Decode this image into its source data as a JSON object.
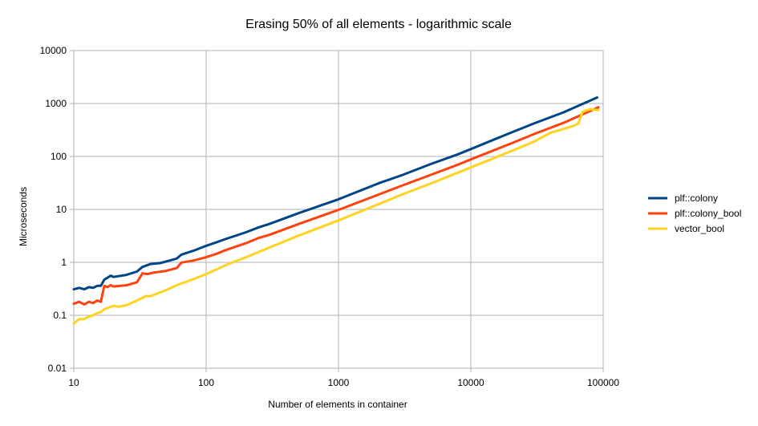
{
  "chart_data": {
    "type": "line",
    "title": "Erasing 50% of all elements - logarithmic scale",
    "xlabel": "Number of elements in container",
    "ylabel": "Microseconds",
    "x_scale": "log",
    "y_scale": "log",
    "xlim": [
      10,
      100000
    ],
    "ylim": [
      0.01,
      10000
    ],
    "x_ticks": [
      "10",
      "100",
      "1000",
      "10000",
      "100000"
    ],
    "y_ticks": [
      "0.01",
      "0.1",
      "1",
      "10",
      "100",
      "1000",
      "10000"
    ],
    "grid": true,
    "legend_position": "right",
    "series": [
      {
        "name": "plf::colony",
        "color": "#004586",
        "points": [
          [
            10,
            0.31
          ],
          [
            11,
            0.33
          ],
          [
            12,
            0.31
          ],
          [
            13,
            0.34
          ],
          [
            14,
            0.33
          ],
          [
            15,
            0.36
          ],
          [
            16,
            0.36
          ],
          [
            17,
            0.47
          ],
          [
            19,
            0.56
          ],
          [
            20,
            0.53
          ],
          [
            25,
            0.58
          ],
          [
            30,
            0.67
          ],
          [
            33,
            0.82
          ],
          [
            38,
            0.93
          ],
          [
            45,
            0.97
          ],
          [
            60,
            1.18
          ],
          [
            65,
            1.4
          ],
          [
            80,
            1.65
          ],
          [
            100,
            2.05
          ],
          [
            120,
            2.4
          ],
          [
            140,
            2.75
          ],
          [
            200,
            3.7
          ],
          [
            250,
            4.6
          ],
          [
            300,
            5.3
          ],
          [
            500,
            8.5
          ],
          [
            1000,
            15.5
          ],
          [
            2000,
            31
          ],
          [
            3000,
            44
          ],
          [
            5000,
            72
          ],
          [
            8000,
            110
          ],
          [
            10000,
            138
          ],
          [
            20000,
            280
          ],
          [
            30000,
            420
          ],
          [
            50000,
            680
          ],
          [
            90000,
            1300
          ]
        ]
      },
      {
        "name": "plf::colony_bool",
        "color": "#ff420e",
        "points": [
          [
            10,
            0.165
          ],
          [
            11,
            0.18
          ],
          [
            12,
            0.16
          ],
          [
            13,
            0.18
          ],
          [
            14,
            0.17
          ],
          [
            15,
            0.19
          ],
          [
            16,
            0.18
          ],
          [
            17,
            0.36
          ],
          [
            18,
            0.34
          ],
          [
            19,
            0.37
          ],
          [
            20,
            0.35
          ],
          [
            25,
            0.37
          ],
          [
            30,
            0.42
          ],
          [
            33,
            0.62
          ],
          [
            36,
            0.6
          ],
          [
            40,
            0.64
          ],
          [
            50,
            0.69
          ],
          [
            60,
            0.78
          ],
          [
            65,
            0.99
          ],
          [
            80,
            1.08
          ],
          [
            100,
            1.25
          ],
          [
            120,
            1.45
          ],
          [
            140,
            1.7
          ],
          [
            200,
            2.3
          ],
          [
            250,
            2.9
          ],
          [
            300,
            3.3
          ],
          [
            500,
            5.3
          ],
          [
            1000,
            9.8
          ],
          [
            2000,
            19
          ],
          [
            3000,
            28
          ],
          [
            5000,
            45
          ],
          [
            8000,
            70
          ],
          [
            10000,
            88
          ],
          [
            20000,
            175
          ],
          [
            30000,
            265
          ],
          [
            50000,
            430
          ],
          [
            92000,
            850
          ]
        ]
      },
      {
        "name": "vector_bool",
        "color": "#ffd320",
        "points": [
          [
            10,
            0.07
          ],
          [
            11,
            0.085
          ],
          [
            12,
            0.085
          ],
          [
            13,
            0.095
          ],
          [
            14,
            0.1
          ],
          [
            15,
            0.11
          ],
          [
            16,
            0.115
          ],
          [
            17,
            0.13
          ],
          [
            19,
            0.145
          ],
          [
            20,
            0.15
          ],
          [
            22,
            0.145
          ],
          [
            25,
            0.155
          ],
          [
            30,
            0.19
          ],
          [
            35,
            0.23
          ],
          [
            38,
            0.23
          ],
          [
            50,
            0.3
          ],
          [
            60,
            0.37
          ],
          [
            80,
            0.48
          ],
          [
            100,
            0.6
          ],
          [
            150,
            0.95
          ],
          [
            200,
            1.25
          ],
          [
            300,
            1.9
          ],
          [
            500,
            3.2
          ],
          [
            1000,
            6.2
          ],
          [
            2000,
            12.5
          ],
          [
            3000,
            19
          ],
          [
            5000,
            31
          ],
          [
            10000,
            62
          ],
          [
            20000,
            125
          ],
          [
            30000,
            190
          ],
          [
            40000,
            280
          ],
          [
            50000,
            330
          ],
          [
            60000,
            380
          ],
          [
            65000,
            420
          ],
          [
            70000,
            700
          ],
          [
            80000,
            780
          ],
          [
            92000,
            750
          ]
        ]
      }
    ]
  }
}
